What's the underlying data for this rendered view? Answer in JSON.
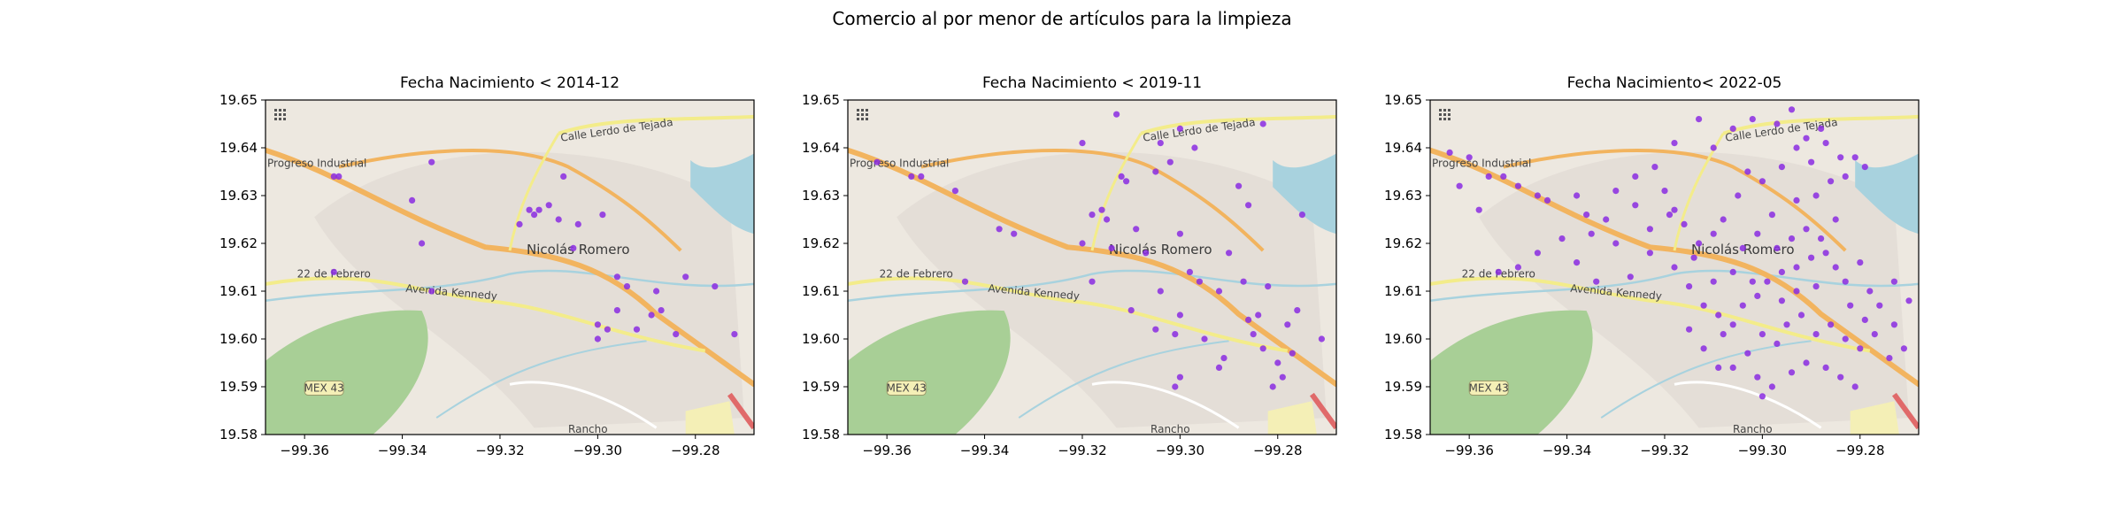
{
  "figure": {
    "title": "Comercio al por menor de artículos para la limpieza"
  },
  "map_labels": {
    "progreso": "Progreso Industrial",
    "calle_lerdo": "Calle Lerdo de Tejada",
    "nicolas_romero": "Nicolás Romero",
    "febrero": "22 de Febrero",
    "kennedy": "Avenida Kennedy",
    "mex43": "MEX 43",
    "rancho": "Rancho"
  },
  "colors": {
    "points": "#8a2be2",
    "map_bg": "#ede8e0",
    "major_road": "#f2b45f",
    "secondary_road": "#f3ec8a",
    "water": "#a8d2de",
    "forest": "#a8cf96",
    "highway": "#e06a6a"
  },
  "chart_data": [
    {
      "type": "scatter",
      "title": "Fecha Nacimiento < 2014-12",
      "xlim": [
        -99.368,
        -99.268
      ],
      "ylim": [
        19.58,
        19.65
      ],
      "xticks": [
        "−99.36",
        "−99.34",
        "−99.32",
        "−99.30",
        "−99.28"
      ],
      "yticks": [
        "19.58",
        "19.59",
        "19.60",
        "19.61",
        "19.62",
        "19.63",
        "19.64",
        "19.65"
      ],
      "points": [
        [
          -99.354,
          19.634
        ],
        [
          -99.353,
          19.634
        ],
        [
          -99.334,
          19.637
        ],
        [
          -99.338,
          19.629
        ],
        [
          -99.336,
          19.62
        ],
        [
          -99.354,
          19.614
        ],
        [
          -99.334,
          19.61
        ],
        [
          -99.314,
          19.627
        ],
        [
          -99.313,
          19.626
        ],
        [
          -99.312,
          19.627
        ],
        [
          -99.31,
          19.628
        ],
        [
          -99.316,
          19.624
        ],
        [
          -99.307,
          19.634
        ],
        [
          -99.308,
          19.625
        ],
        [
          -99.304,
          19.624
        ],
        [
          -99.299,
          19.626
        ],
        [
          -99.305,
          19.619
        ],
        [
          -99.296,
          19.613
        ],
        [
          -99.294,
          19.611
        ],
        [
          -99.3,
          19.603
        ],
        [
          -99.298,
          19.602
        ],
        [
          -99.3,
          19.6
        ],
        [
          -99.288,
          19.61
        ],
        [
          -99.287,
          19.606
        ],
        [
          -99.282,
          19.613
        ],
        [
          -99.289,
          19.605
        ],
        [
          -99.276,
          19.611
        ],
        [
          -99.272,
          19.601
        ],
        [
          -99.296,
          19.606
        ],
        [
          -99.292,
          19.602
        ],
        [
          -99.284,
          19.601
        ]
      ]
    },
    {
      "type": "scatter",
      "title": "Fecha Nacimiento < 2019-11",
      "xlim": [
        -99.368,
        -99.268
      ],
      "ylim": [
        19.58,
        19.65
      ],
      "xticks": [
        "−99.36",
        "−99.34",
        "−99.32",
        "−99.30",
        "−99.28"
      ],
      "yticks": [
        "19.58",
        "19.59",
        "19.60",
        "19.61",
        "19.62",
        "19.63",
        "19.64",
        "19.65"
      ],
      "points": [
        [
          -99.362,
          19.637
        ],
        [
          -99.355,
          19.634
        ],
        [
          -99.353,
          19.634
        ],
        [
          -99.346,
          19.631
        ],
        [
          -99.337,
          19.623
        ],
        [
          -99.334,
          19.622
        ],
        [
          -99.32,
          19.641
        ],
        [
          -99.313,
          19.647
        ],
        [
          -99.304,
          19.641
        ],
        [
          -99.3,
          19.644
        ],
        [
          -99.297,
          19.64
        ],
        [
          -99.283,
          19.645
        ],
        [
          -99.288,
          19.632
        ],
        [
          -99.286,
          19.628
        ],
        [
          -99.275,
          19.626
        ],
        [
          -99.312,
          19.634
        ],
        [
          -99.311,
          19.633
        ],
        [
          -99.305,
          19.635
        ],
        [
          -99.302,
          19.637
        ],
        [
          -99.318,
          19.626
        ],
        [
          -99.316,
          19.627
        ],
        [
          -99.315,
          19.625
        ],
        [
          -99.32,
          19.62
        ],
        [
          -99.314,
          19.619
        ],
        [
          -99.309,
          19.623
        ],
        [
          -99.307,
          19.618
        ],
        [
          -99.3,
          19.622
        ],
        [
          -99.298,
          19.614
        ],
        [
          -99.296,
          19.612
        ],
        [
          -99.292,
          19.61
        ],
        [
          -99.29,
          19.618
        ],
        [
          -99.287,
          19.612
        ],
        [
          -99.284,
          19.605
        ],
        [
          -99.282,
          19.611
        ],
        [
          -99.286,
          19.604
        ],
        [
          -99.278,
          19.603
        ],
        [
          -99.276,
          19.606
        ],
        [
          -99.271,
          19.6
        ],
        [
          -99.3,
          19.605
        ],
        [
          -99.301,
          19.601
        ],
        [
          -99.305,
          19.602
        ],
        [
          -99.31,
          19.606
        ],
        [
          -99.295,
          19.6
        ],
        [
          -99.291,
          19.596
        ],
        [
          -99.285,
          19.601
        ],
        [
          -99.283,
          19.598
        ],
        [
          -99.28,
          19.595
        ],
        [
          -99.277,
          19.597
        ],
        [
          -99.3,
          19.592
        ],
        [
          -99.301,
          19.59
        ],
        [
          -99.292,
          19.594
        ],
        [
          -99.281,
          19.59
        ],
        [
          -99.279,
          19.592
        ],
        [
          -99.318,
          19.612
        ],
        [
          -99.304,
          19.61
        ],
        [
          -99.344,
          19.612
        ]
      ]
    },
    {
      "type": "scatter",
      "title": "Fecha Nacimiento< 2022-05",
      "xlim": [
        -99.368,
        -99.268
      ],
      "ylim": [
        19.58,
        19.65
      ],
      "xticks": [
        "−99.36",
        "−99.34",
        "−99.32",
        "−99.30",
        "−99.28"
      ],
      "yticks": [
        "19.58",
        "19.59",
        "19.60",
        "19.61",
        "19.62",
        "19.63",
        "19.64",
        "19.65"
      ],
      "points": [
        [
          -99.364,
          19.639
        ],
        [
          -99.36,
          19.638
        ],
        [
          -99.356,
          19.634
        ],
        [
          -99.353,
          19.634
        ],
        [
          -99.362,
          19.632
        ],
        [
          -99.35,
          19.632
        ],
        [
          -99.346,
          19.63
        ],
        [
          -99.344,
          19.629
        ],
        [
          -99.358,
          19.627
        ],
        [
          -99.338,
          19.63
        ],
        [
          -99.336,
          19.626
        ],
        [
          -99.335,
          19.622
        ],
        [
          -99.341,
          19.621
        ],
        [
          -99.346,
          19.618
        ],
        [
          -99.35,
          19.615
        ],
        [
          -99.354,
          19.614
        ],
        [
          -99.338,
          19.616
        ],
        [
          -99.334,
          19.612
        ],
        [
          -99.327,
          19.613
        ],
        [
          -99.33,
          19.62
        ],
        [
          -99.323,
          19.618
        ],
        [
          -99.319,
          19.626
        ],
        [
          -99.318,
          19.627
        ],
        [
          -99.316,
          19.624
        ],
        [
          -99.313,
          19.62
        ],
        [
          -99.31,
          19.622
        ],
        [
          -99.308,
          19.625
        ],
        [
          -99.305,
          19.63
        ],
        [
          -99.303,
          19.635
        ],
        [
          -99.3,
          19.633
        ],
        [
          -99.296,
          19.636
        ],
        [
          -99.293,
          19.64
        ],
        [
          -99.29,
          19.637
        ],
        [
          -99.287,
          19.641
        ],
        [
          -99.284,
          19.638
        ],
        [
          -99.281,
          19.638
        ],
        [
          -99.279,
          19.636
        ],
        [
          -99.31,
          19.64
        ],
        [
          -99.306,
          19.644
        ],
        [
          -99.302,
          19.646
        ],
        [
          -99.297,
          19.645
        ],
        [
          -99.294,
          19.648
        ],
        [
          -99.291,
          19.642
        ],
        [
          -99.288,
          19.644
        ],
        [
          -99.313,
          19.646
        ],
        [
          -99.318,
          19.641
        ],
        [
          -99.322,
          19.636
        ],
        [
          -99.326,
          19.628
        ],
        [
          -99.323,
          19.623
        ],
        [
          -99.318,
          19.615
        ],
        [
          -99.315,
          19.611
        ],
        [
          -99.312,
          19.607
        ],
        [
          -99.309,
          19.605
        ],
        [
          -99.308,
          19.601
        ],
        [
          -99.306,
          19.603
        ],
        [
          -99.304,
          19.607
        ],
        [
          -99.301,
          19.609
        ],
        [
          -99.299,
          19.612
        ],
        [
          -99.296,
          19.614
        ],
        [
          -99.293,
          19.615
        ],
        [
          -99.29,
          19.617
        ],
        [
          -99.287,
          19.618
        ],
        [
          -99.285,
          19.615
        ],
        [
          -99.283,
          19.612
        ],
        [
          -99.28,
          19.616
        ],
        [
          -99.278,
          19.61
        ],
        [
          -99.276,
          19.607
        ],
        [
          -99.273,
          19.603
        ],
        [
          -99.27,
          19.608
        ],
        [
          -99.297,
          19.619
        ],
        [
          -99.294,
          19.621
        ],
        [
          -99.291,
          19.623
        ],
        [
          -99.288,
          19.621
        ],
        [
          -99.285,
          19.625
        ],
        [
          -99.3,
          19.601
        ],
        [
          -99.297,
          19.599
        ],
        [
          -99.295,
          19.603
        ],
        [
          -99.292,
          19.605
        ],
        [
          -99.289,
          19.601
        ],
        [
          -99.286,
          19.603
        ],
        [
          -99.283,
          19.6
        ],
        [
          -99.28,
          19.598
        ],
        [
          -99.277,
          19.601
        ],
        [
          -99.274,
          19.596
        ],
        [
          -99.303,
          19.597
        ],
        [
          -99.306,
          19.594
        ],
        [
          -99.301,
          19.592
        ],
        [
          -99.298,
          19.59
        ],
        [
          -99.294,
          19.593
        ],
        [
          -99.291,
          19.595
        ],
        [
          -99.287,
          19.594
        ],
        [
          -99.284,
          19.592
        ],
        [
          -99.281,
          19.59
        ],
        [
          -99.3,
          19.588
        ],
        [
          -99.312,
          19.598
        ],
        [
          -99.309,
          19.594
        ],
        [
          -99.315,
          19.602
        ],
        [
          -99.302,
          19.612
        ],
        [
          -99.306,
          19.614
        ],
        [
          -99.31,
          19.612
        ],
        [
          -99.296,
          19.608
        ],
        [
          -99.293,
          19.61
        ],
        [
          -99.289,
          19.611
        ],
        [
          -99.282,
          19.607
        ],
        [
          -99.279,
          19.604
        ],
        [
          -99.273,
          19.612
        ],
        [
          -99.271,
          19.598
        ],
        [
          -99.33,
          19.631
        ],
        [
          -99.326,
          19.634
        ],
        [
          -99.332,
          19.625
        ],
        [
          -99.32,
          19.631
        ],
        [
          -99.314,
          19.617
        ],
        [
          -99.304,
          19.619
        ],
        [
          -99.301,
          19.622
        ],
        [
          -99.298,
          19.626
        ],
        [
          -99.293,
          19.629
        ],
        [
          -99.289,
          19.63
        ],
        [
          -99.286,
          19.633
        ],
        [
          -99.283,
          19.634
        ]
      ]
    }
  ]
}
